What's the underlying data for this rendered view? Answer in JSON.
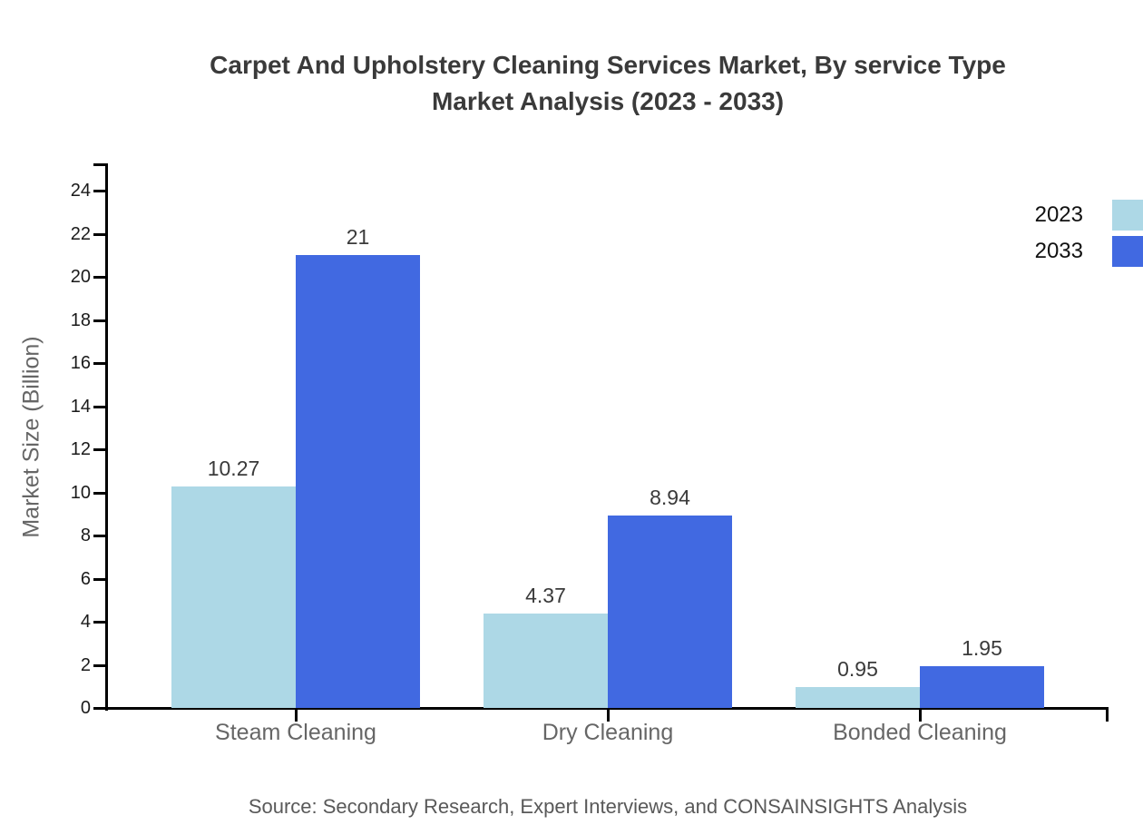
{
  "chart": {
    "title_lines": [
      "Carpet And Upholstery Cleaning Services Market, By service Type",
      "Market Analysis (2023 - 2033)"
    ],
    "source": "Source: Secondary Research, Expert Interviews, and CONSAINSIGHTS Analysis"
  },
  "chart_data": {
    "type": "bar",
    "title": "Carpet And Upholstery Cleaning Services Market, By service Type Market Analysis (2023 - 2033)",
    "categories": [
      "Steam Cleaning",
      "Dry Cleaning",
      "Bonded Cleaning"
    ],
    "series": [
      {
        "name": "2023",
        "color": "#ADD8E6",
        "values": [
          10.27,
          4.37,
          0.95
        ]
      },
      {
        "name": "2033",
        "color": "#4169E1",
        "values": [
          21,
          8.94,
          1.95
        ]
      }
    ],
    "xlabel": "",
    "ylabel": "Market Size (Billion)",
    "ylim": [
      0,
      25.3
    ],
    "yticks": [
      0,
      2,
      4,
      6,
      8,
      10,
      12,
      14,
      16,
      18,
      20,
      22,
      24
    ],
    "grid": false,
    "legend_position": "top-right",
    "value_labels_shown": true
  }
}
